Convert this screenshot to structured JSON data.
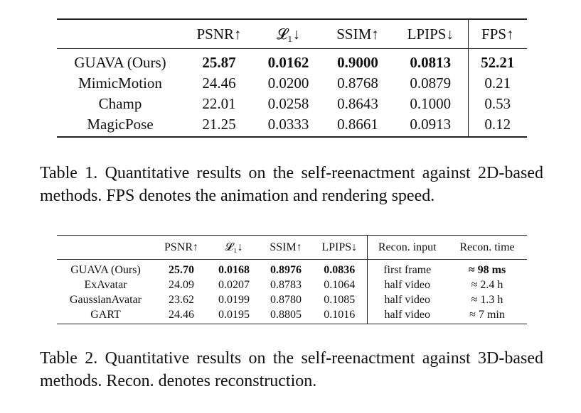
{
  "table1": {
    "headers": [
      "",
      "PSNR↑",
      "𝓛₁↓",
      "SSIM↑",
      "LPIPS↓",
      "FPS↑"
    ],
    "rows": [
      [
        "GUAVA (Ours)",
        "25.87",
        "0.0162",
        "0.9000",
        "0.0813",
        "52.21"
      ],
      [
        "MimicMotion",
        "24.46",
        "0.0200",
        "0.8768",
        "0.0879",
        "0.21"
      ],
      [
        "Champ",
        "22.01",
        "0.0258",
        "0.8643",
        "0.1000",
        "0.53"
      ],
      [
        "MagicPose",
        "21.25",
        "0.0333",
        "0.8661",
        "0.0913",
        "0.12"
      ]
    ],
    "caption": "Table 1. Quantitative results on the self-reenactment against 2D-based methods. FPS denotes the animation and rendering speed."
  },
  "table2": {
    "headers": [
      "",
      "PSNR↑",
      "𝓛₁↓",
      "SSIM↑",
      "LPIPS↓",
      "Recon. input",
      "Recon. time"
    ],
    "rows": [
      [
        "GUAVA (Ours)",
        "25.70",
        "0.0168",
        "0.8976",
        "0.0836",
        "first frame",
        "≈ 98 ms"
      ],
      [
        "ExAvatar",
        "24.09",
        "0.0207",
        "0.8783",
        "0.1064",
        "half video",
        "≈ 2.4 h"
      ],
      [
        "GaussianAvatar",
        "23.62",
        "0.0199",
        "0.8780",
        "0.1085",
        "half video",
        "≈ 1.3 h"
      ],
      [
        "GART",
        "24.46",
        "0.0195",
        "0.8805",
        "0.1016",
        "half video",
        "≈ 7 min"
      ]
    ],
    "caption": "Table 2. Quantitative results on the self-reenactment against 3D-based methods. Recon. denotes reconstruction."
  }
}
